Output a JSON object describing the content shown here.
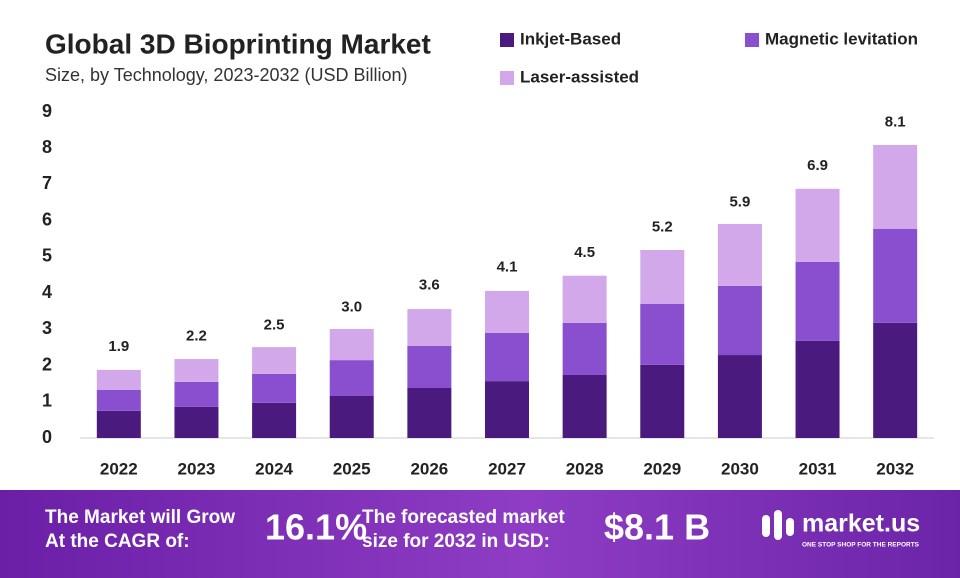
{
  "chart_data": {
    "type": "stacked-bar",
    "title": "Global 3D Bioprinting Market",
    "subtitle": "Size, by Technology, 2023-2032 (USD Billion)",
    "categories": [
      "2022",
      "2023",
      "2024",
      "2025",
      "2026",
      "2027",
      "2028",
      "2029",
      "2030",
      "2031",
      "2032"
    ],
    "series": [
      {
        "name": "Inkjet-Based",
        "color": "#4a1a7e",
        "values": [
          0.75,
          0.86,
          0.97,
          1.16,
          1.38,
          1.57,
          1.74,
          2.02,
          2.29,
          2.68,
          3.18
        ]
      },
      {
        "name": "Magnetic levitation",
        "color": "#8a4fcf",
        "values": [
          0.58,
          0.69,
          0.8,
          0.99,
          1.16,
          1.33,
          1.44,
          1.68,
          1.91,
          2.18,
          2.59
        ]
      },
      {
        "name": "Laser-assisted",
        "color": "#d2a8ea",
        "values": [
          0.55,
          0.63,
          0.74,
          0.86,
          1.02,
          1.16,
          1.3,
          1.49,
          1.71,
          2.02,
          2.32
        ]
      }
    ],
    "totals": [
      1.9,
      2.2,
      2.5,
      3,
      3.6,
      4.1,
      4.5,
      5.2,
      5.9,
      6.9,
      8.1
    ],
    "total_labels": [
      "1.9",
      "2.2",
      "2.5",
      "3.0",
      "3.6",
      "4.1",
      "4.5",
      "5.2",
      "5.9",
      "6.9",
      "8.1"
    ],
    "ylim": [
      0,
      9
    ],
    "yticks": [
      0,
      1,
      2,
      3,
      4,
      5,
      6,
      7,
      8,
      9
    ],
    "grid": false
  },
  "footer": {
    "cagr_text": [
      "The Market will Grow",
      "At the CAGR of:"
    ],
    "cagr": "16.1%",
    "forecast_text": [
      "The forecasted market",
      "size for 2032 in USD:"
    ],
    "forecast": "$8.1 B",
    "brand": "market.us",
    "tagline": "ONE STOP SHOP FOR THE REPORTS"
  }
}
